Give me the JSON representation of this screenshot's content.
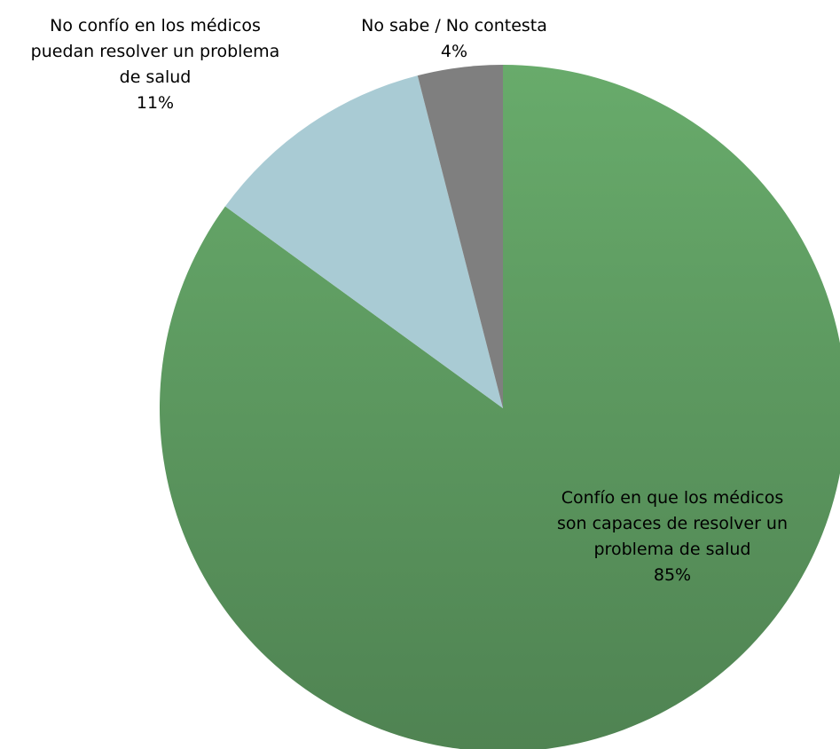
{
  "chart_data": {
    "type": "pie",
    "title": "",
    "start_angle_deg": 0,
    "direction": "clockwise",
    "legend": "none",
    "slices": [
      {
        "label": "Confío en que los médicos son capaces de resolver un problema de salud",
        "value": 85,
        "value_label": "85%",
        "label_lines": [
          "Confío en que los médicos",
          "son capaces de resolver un",
          "problema de salud"
        ],
        "color": "#5e9a61"
      },
      {
        "label": "No confío en los médicos puedan resolver un problema de salud",
        "value": 11,
        "value_label": "11%",
        "label_lines": [
          "No confío en los médicos",
          "puedan resolver un problema",
          "de salud"
        ],
        "color": "#a9cbd4"
      },
      {
        "label": "No sabe / No contesta",
        "value": 4,
        "value_label": "4%",
        "label_lines": [
          "No sabe / No contesta"
        ],
        "color": "#7f7f7f"
      }
    ]
  }
}
